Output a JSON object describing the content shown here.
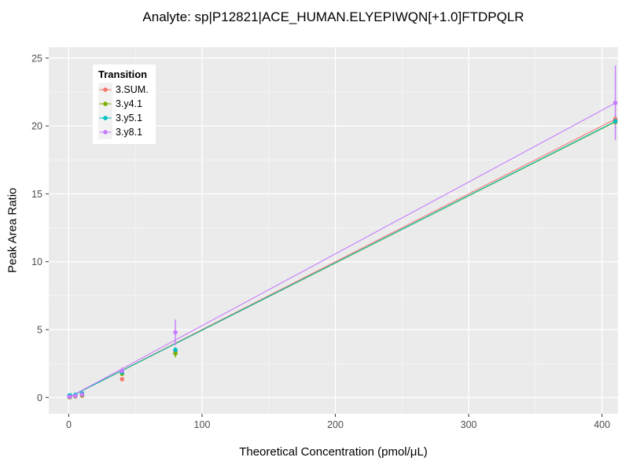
{
  "chart_data": {
    "type": "scatter",
    "title": "Analyte: sp|P12821|ACE_HUMAN.ELYEPIWQN[+1.0]FTDPQLR",
    "xlabel": "Theoretical Concentration (pmol/μL)",
    "ylabel": "Peak Area Ratio",
    "xlim": [
      -15,
      412
    ],
    "ylim": [
      -1.2,
      25.8
    ],
    "x_ticks": [
      0,
      100,
      200,
      300,
      400
    ],
    "y_ticks": [
      0,
      5,
      10,
      15,
      20,
      25
    ],
    "grid": true,
    "panel_bg": "#EBEBEB",
    "grid_color": "#FFFFFF",
    "tick_color": "#333333",
    "tick_label_color": "#4D4D4D",
    "legend_title": "Transition",
    "legend_position": "inside-top-left",
    "series": [
      {
        "name": "3.SUM.",
        "color": "#F8766D",
        "x": [
          0.5,
          1,
          5,
          10,
          40,
          80,
          410
        ],
        "y": [
          0.02,
          0.03,
          0.08,
          0.13,
          1.35,
          3.4,
          20.5
        ],
        "yerr": [
          0.02,
          0.02,
          0.03,
          0.05,
          0.12,
          0.18,
          0.35
        ],
        "fit_slope": 0.05,
        "fit_intercept": 0
      },
      {
        "name": "3.y4.1",
        "color": "#7CAE00",
        "x": [
          0.5,
          1,
          5,
          10,
          40,
          80,
          410
        ],
        "y": [
          0.02,
          0.03,
          0.09,
          0.16,
          1.75,
          3.25,
          20.3
        ],
        "yerr": [
          0.02,
          0.02,
          0.04,
          0.06,
          0.15,
          0.3,
          0.4
        ],
        "fit_slope": 0.0495,
        "fit_intercept": 0
      },
      {
        "name": "3.y5.1",
        "color": "#00BFC4",
        "x": [
          0.5,
          1,
          5,
          10,
          40,
          80,
          410
        ],
        "y": [
          0.15,
          0.16,
          0.2,
          0.3,
          1.85,
          3.5,
          20.35
        ],
        "yerr": [
          0.08,
          0.05,
          0.05,
          0.08,
          0.15,
          0.2,
          0.5
        ],
        "fit_slope": 0.0496,
        "fit_intercept": 0
      },
      {
        "name": "3.y8.1",
        "color": "#C77CFF",
        "x": [
          0.5,
          1,
          5,
          10,
          40,
          80,
          410
        ],
        "y": [
          0.05,
          0.06,
          0.12,
          0.22,
          1.95,
          4.8,
          21.7
        ],
        "yerr": [
          0.03,
          0.03,
          0.06,
          0.12,
          0.25,
          0.95,
          2.75
        ],
        "fit_slope": 0.0529,
        "fit_intercept": 0
      }
    ]
  }
}
